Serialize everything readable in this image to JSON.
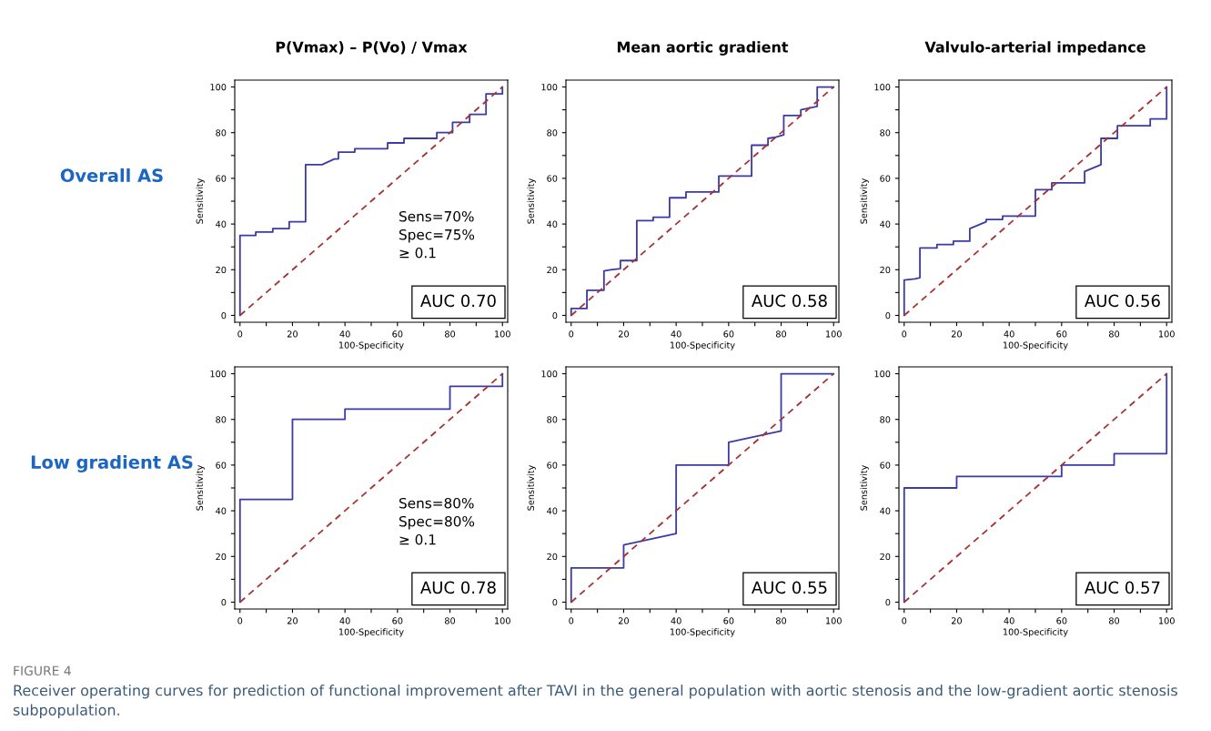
{
  "chart_data": [
    {
      "type": "line",
      "title": "P(Vmax) – P(Vo) / Vmax",
      "xlabel": "100-Specificity",
      "ylabel": "Sensitivity",
      "xlim": [
        -2,
        102
      ],
      "ylim": [
        -3,
        103
      ],
      "xticks": [
        0,
        {
          "value": 10,
          "label": null
        },
        20,
        {
          "value": 30,
          "label": null
        },
        40,
        {
          "value": 50,
          "label": null
        },
        60,
        {
          "value": 70,
          "label": null
        },
        80,
        {
          "value": 90,
          "label": null
        },
        100
      ],
      "yticks": [
        0,
        {
          "value": 10,
          "label": null
        },
        20,
        {
          "value": 30,
          "label": null
        },
        40,
        {
          "value": 50,
          "label": null
        },
        60,
        {
          "value": 70,
          "label": null
        },
        80,
        {
          "value": 90,
          "label": null
        },
        100
      ],
      "series": [
        {
          "color": "#3a3aa8",
          "line_style": "solid",
          "x": [
            0,
            0,
            6,
            6,
            12.5,
            12.5,
            18.75,
            18.75,
            25,
            25,
            31.25,
            36,
            37.5,
            37.5,
            43.75,
            43.75,
            56.25,
            56.25,
            62.5,
            62.5,
            75,
            75,
            81,
            81,
            87.5,
            87.5,
            93.75,
            93.75,
            100,
            100
          ],
          "values": [
            0,
            35,
            35,
            36.5,
            36.5,
            38,
            38,
            41,
            41,
            66,
            66,
            68.5,
            68.5,
            71.5,
            71.5,
            73,
            73,
            75.5,
            75.5,
            77.5,
            77.5,
            80,
            80,
            84.5,
            84.5,
            88,
            88,
            97,
            97,
            100
          ]
        },
        {
          "color": "#a83232",
          "line_style": "dashed",
          "x": [
            0,
            100
          ],
          "values": [
            0,
            100
          ]
        }
      ],
      "annotations": [
        "Overall AS",
        "Sens=70%\nSpec=75%\n≥ 0.1",
        "AUC 0.70"
      ]
    },
    {
      "type": "line",
      "title": "Mean aortic gradient",
      "xlabel": "100-Specificity",
      "ylabel": "Sensitivity",
      "xlim": [
        -2,
        102
      ],
      "ylim": [
        -3,
        103
      ],
      "xticks": [
        0,
        {
          "value": 10,
          "label": null
        },
        20,
        {
          "value": 30,
          "label": null
        },
        40,
        {
          "value": 50,
          "label": null
        },
        60,
        {
          "value": 70,
          "label": null
        },
        80,
        {
          "value": 90,
          "label": null
        },
        100
      ],
      "yticks": [
        0,
        {
          "value": 10,
          "label": null
        },
        20,
        {
          "value": 30,
          "label": null
        },
        40,
        {
          "value": 50,
          "label": null
        },
        60,
        {
          "value": 70,
          "label": null
        },
        80,
        {
          "value": 90,
          "label": null
        },
        100
      ],
      "series": [
        {
          "color": "#3a3aa8",
          "line_style": "solid",
          "x": [
            0,
            0,
            6,
            6,
            12.5,
            12.5,
            15,
            18.75,
            18.75,
            25,
            25,
            31.25,
            31.25,
            37.5,
            37.5,
            43.75,
            43.75,
            56.25,
            56.25,
            68.75,
            68.75,
            75,
            75,
            78,
            81,
            81,
            87.5,
            87.5,
            93.75,
            93.75,
            100
          ],
          "values": [
            0,
            3,
            3,
            11,
            11,
            19.5,
            20,
            20.5,
            24,
            24,
            41.5,
            41.5,
            43,
            43,
            51.5,
            51.5,
            54,
            54,
            61,
            61,
            74.5,
            74.5,
            77.5,
            78,
            79,
            87.5,
            87.5,
            90,
            91.5,
            100,
            100
          ]
        },
        {
          "color": "#a83232",
          "line_style": "dashed",
          "x": [
            0,
            100
          ],
          "values": [
            0,
            100
          ]
        }
      ],
      "annotations": [
        "AUC 0.58"
      ]
    },
    {
      "type": "line",
      "title": "Valvulo-arterial impedance",
      "xlabel": "100-Specificity",
      "ylabel": "Sensitivity",
      "xlim": [
        -2,
        102
      ],
      "ylim": [
        -3,
        103
      ],
      "xticks": [
        0,
        {
          "value": 10,
          "label": null
        },
        20,
        {
          "value": 30,
          "label": null
        },
        40,
        {
          "value": 50,
          "label": null
        },
        60,
        {
          "value": 70,
          "label": null
        },
        80,
        {
          "value": 90,
          "label": null
        },
        100
      ],
      "yticks": [
        0,
        {
          "value": 10,
          "label": null
        },
        20,
        {
          "value": 30,
          "label": null
        },
        40,
        {
          "value": 50,
          "label": null
        },
        60,
        {
          "value": 70,
          "label": null
        },
        80,
        {
          "value": 90,
          "label": null
        },
        100
      ],
      "series": [
        {
          "color": "#3a3aa8",
          "line_style": "solid",
          "x": [
            0,
            0,
            4,
            6,
            6,
            12.5,
            12.5,
            18.75,
            18.75,
            25,
            25,
            31.25,
            31.25,
            37.5,
            37.5,
            50,
            50,
            56.25,
            56.25,
            68.75,
            68.75,
            75,
            75,
            81.25,
            81.25,
            93.75,
            93.75,
            100,
            100
          ],
          "values": [
            0,
            15.5,
            16,
            16.5,
            29.5,
            29.5,
            31,
            31,
            32.5,
            32.5,
            38,
            41,
            42,
            42,
            43.5,
            43.5,
            55,
            55,
            58,
            58,
            63,
            66,
            77.5,
            77.5,
            83,
            83,
            86,
            86,
            100
          ]
        },
        {
          "color": "#a83232",
          "line_style": "dashed",
          "x": [
            0,
            100
          ],
          "values": [
            0,
            100
          ]
        }
      ],
      "annotations": [
        "AUC 0.56"
      ]
    },
    {
      "type": "line",
      "xlabel": "100-Specificity",
      "ylabel": "Sensitivity",
      "xlim": [
        -2,
        102
      ],
      "ylim": [
        -3,
        103
      ],
      "xticks": [
        0,
        {
          "value": 10,
          "label": null
        },
        20,
        {
          "value": 30,
          "label": null
        },
        40,
        {
          "value": 50,
          "label": null
        },
        60,
        {
          "value": 70,
          "label": null
        },
        80,
        {
          "value": 90,
          "label": null
        },
        100
      ],
      "yticks": [
        0,
        {
          "value": 10,
          "label": null
        },
        20,
        {
          "value": 30,
          "label": null
        },
        40,
        {
          "value": 50,
          "label": null
        },
        60,
        {
          "value": 70,
          "label": null
        },
        80,
        {
          "value": 90,
          "label": null
        },
        100
      ],
      "series": [
        {
          "color": "#3a3aa8",
          "line_style": "solid",
          "x": [
            0,
            0,
            20,
            20,
            40,
            40,
            80,
            80,
            100,
            100
          ],
          "values": [
            0,
            45,
            45,
            80,
            80,
            84.5,
            84.5,
            94.5,
            94.5,
            100
          ]
        },
        {
          "color": "#a83232",
          "line_style": "dashed",
          "x": [
            0,
            100
          ],
          "values": [
            0,
            100
          ]
        }
      ],
      "annotations": [
        "Low gradient AS",
        "Sens=80%\nSpec=80%\n≥ 0.1",
        "AUC 0.78"
      ]
    },
    {
      "type": "line",
      "xlabel": "100-Specificity",
      "ylabel": "Sensitivity",
      "xlim": [
        -2,
        102
      ],
      "ylim": [
        -3,
        103
      ],
      "xticks": [
        0,
        {
          "value": 10,
          "label": null
        },
        20,
        {
          "value": 30,
          "label": null
        },
        40,
        {
          "value": 50,
          "label": null
        },
        60,
        {
          "value": 70,
          "label": null
        },
        80,
        {
          "value": 90,
          "label": null
        },
        100
      ],
      "yticks": [
        0,
        {
          "value": 10,
          "label": null
        },
        20,
        {
          "value": 30,
          "label": null
        },
        40,
        {
          "value": 50,
          "label": null
        },
        60,
        {
          "value": 70,
          "label": null
        },
        80,
        {
          "value": 90,
          "label": null
        },
        100
      ],
      "series": [
        {
          "color": "#3a3aa8",
          "line_style": "solid",
          "x": [
            0,
            0,
            20,
            20,
            40,
            40,
            60,
            60,
            80,
            80,
            100
          ],
          "values": [
            0,
            15,
            15,
            25,
            30,
            60,
            60,
            70,
            75,
            100,
            100
          ]
        },
        {
          "color": "#a83232",
          "line_style": "dashed",
          "x": [
            0,
            100
          ],
          "values": [
            0,
            100
          ]
        }
      ],
      "annotations": [
        "AUC 0.55"
      ]
    },
    {
      "type": "line",
      "xlabel": "100-Specificity",
      "ylabel": "Sensitivity",
      "xlim": [
        -2,
        102
      ],
      "ylim": [
        -3,
        103
      ],
      "xticks": [
        0,
        {
          "value": 10,
          "label": null
        },
        20,
        {
          "value": 30,
          "label": null
        },
        40,
        {
          "value": 50,
          "label": null
        },
        60,
        {
          "value": 70,
          "label": null
        },
        80,
        {
          "value": 90,
          "label": null
        },
        100
      ],
      "yticks": [
        0,
        {
          "value": 10,
          "label": null
        },
        20,
        {
          "value": 30,
          "label": null
        },
        40,
        {
          "value": 50,
          "label": null
        },
        60,
        {
          "value": 70,
          "label": null
        },
        80,
        {
          "value": 90,
          "label": null
        },
        100
      ],
      "series": [
        {
          "color": "#3a3aa8",
          "line_style": "solid",
          "x": [
            0,
            0,
            20,
            20,
            60,
            60,
            80,
            80,
            100,
            100
          ],
          "values": [
            0,
            50,
            50,
            55,
            55,
            60,
            60,
            65,
            65,
            100
          ]
        },
        {
          "color": "#a83232",
          "line_style": "dashed",
          "x": [
            0,
            100
          ],
          "values": [
            0,
            100
          ]
        }
      ],
      "annotations": [
        "AUC 0.57"
      ]
    },
    {
      "type": "other",
      "annotations": [
        "FIGURE 4",
        "Receiver operating curves for prediction of functional improvement after TAVI in the general population with aortic stenosis and the low-gradient aortic stenosis subpopulation."
      ]
    }
  ]
}
